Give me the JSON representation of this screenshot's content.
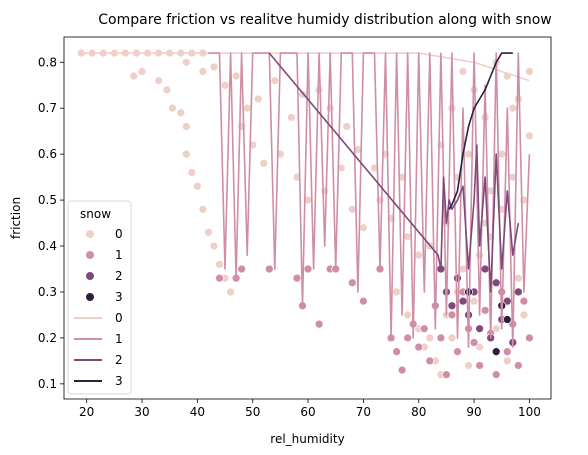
{
  "chart_data": {
    "type": "scatter",
    "title": "Compare friction vs realitve humidy distribution along with snow",
    "xlabel": "rel_humidity",
    "ylabel": "friction",
    "xlim": [
      15.9,
      103.9
    ],
    "ylim": [
      0.067,
      0.855
    ],
    "xticks": [
      20,
      30,
      40,
      50,
      60,
      70,
      80,
      90,
      100
    ],
    "yticks": [
      0.1,
      0.2,
      0.3,
      0.4,
      0.5,
      0.6,
      0.7,
      0.8
    ],
    "grid": false,
    "legend": {
      "title": "snow",
      "placement": "lower-left",
      "scatter_entries": [
        "0",
        "1",
        "2",
        "3"
      ],
      "line_entries": [
        "0",
        "1",
        "2",
        "3"
      ]
    },
    "series": [
      {
        "name": "0",
        "color": "#efd0c9",
        "points": [
          [
            19,
            0.82
          ],
          [
            21,
            0.82
          ],
          [
            23,
            0.82
          ],
          [
            25,
            0.82
          ],
          [
            27,
            0.82
          ],
          [
            29,
            0.82
          ],
          [
            31,
            0.82
          ],
          [
            33,
            0.82
          ],
          [
            35,
            0.82
          ],
          [
            37,
            0.82
          ],
          [
            39,
            0.82
          ],
          [
            41,
            0.82
          ],
          [
            28.5,
            0.77
          ],
          [
            30,
            0.78
          ],
          [
            33,
            0.76
          ],
          [
            34.5,
            0.74
          ],
          [
            35.5,
            0.7
          ],
          [
            37,
            0.69
          ],
          [
            38,
            0.66
          ],
          [
            38,
            0.6
          ],
          [
            39,
            0.56
          ],
          [
            40,
            0.53
          ],
          [
            41,
            0.48
          ],
          [
            42,
            0.43
          ],
          [
            43,
            0.4
          ],
          [
            44,
            0.36
          ],
          [
            45,
            0.33
          ],
          [
            46,
            0.3
          ],
          [
            38,
            0.8
          ],
          [
            41,
            0.78
          ],
          [
            43,
            0.79
          ],
          [
            45,
            0.75
          ],
          [
            47,
            0.77
          ],
          [
            49,
            0.7
          ],
          [
            51,
            0.72
          ],
          [
            54,
            0.76
          ],
          [
            57,
            0.68
          ],
          [
            59,
            0.73
          ],
          [
            62,
            0.74
          ],
          [
            64,
            0.7
          ],
          [
            67,
            0.66
          ],
          [
            69,
            0.61
          ],
          [
            72,
            0.57
          ],
          [
            74,
            0.6
          ],
          [
            77,
            0.55
          ],
          [
            48,
            0.66
          ],
          [
            50,
            0.62
          ],
          [
            52,
            0.58
          ],
          [
            55,
            0.6
          ],
          [
            58,
            0.55
          ],
          [
            60,
            0.5
          ],
          [
            63,
            0.52
          ],
          [
            66,
            0.57
          ],
          [
            68,
            0.48
          ],
          [
            70,
            0.44
          ],
          [
            73,
            0.5
          ],
          [
            75,
            0.46
          ],
          [
            78,
            0.42
          ],
          [
            80,
            0.38
          ],
          [
            82,
            0.4
          ],
          [
            76,
            0.3
          ],
          [
            78,
            0.25
          ],
          [
            80,
            0.22
          ],
          [
            81,
            0.18
          ],
          [
            82,
            0.2
          ],
          [
            83,
            0.15
          ],
          [
            84,
            0.12
          ],
          [
            85,
            0.25
          ],
          [
            86,
            0.2
          ],
          [
            87,
            0.3
          ],
          [
            88,
            0.35
          ],
          [
            89,
            0.14
          ],
          [
            90,
            0.28
          ],
          [
            91,
            0.18
          ],
          [
            92,
            0.45
          ],
          [
            93,
            0.52
          ],
          [
            94,
            0.22
          ],
          [
            95,
            0.6
          ],
          [
            96,
            0.15
          ],
          [
            97,
            0.7
          ],
          [
            98,
            0.33
          ],
          [
            99,
            0.25
          ],
          [
            100,
            0.78
          ],
          [
            84,
            0.62
          ],
          [
            86,
            0.7
          ],
          [
            88,
            0.78
          ],
          [
            90,
            0.74
          ],
          [
            92,
            0.68
          ],
          [
            94,
            0.8
          ],
          [
            96,
            0.77
          ],
          [
            98,
            0.72
          ],
          [
            100,
            0.64
          ],
          [
            85,
            0.45
          ],
          [
            87,
            0.55
          ],
          [
            89,
            0.6
          ],
          [
            91,
            0.38
          ],
          [
            93,
            0.42
          ],
          [
            95,
            0.48
          ],
          [
            97,
            0.55
          ],
          [
            99,
            0.5
          ]
        ],
        "line": [
          [
            19,
            0.82
          ],
          [
            42,
            0.82
          ],
          [
            50,
            0.82
          ],
          [
            60,
            0.82
          ],
          [
            70,
            0.82
          ],
          [
            75,
            0.82
          ],
          [
            80,
            0.82
          ],
          [
            85,
            0.81
          ],
          [
            90,
            0.8
          ],
          [
            95,
            0.78
          ],
          [
            100,
            0.76
          ]
        ]
      },
      {
        "name": "1",
        "color": "#d08ea6",
        "points": [
          [
            44,
            0.33
          ],
          [
            47,
            0.33
          ],
          [
            48,
            0.35
          ],
          [
            53,
            0.35
          ],
          [
            58,
            0.33
          ],
          [
            59,
            0.27
          ],
          [
            60,
            0.35
          ],
          [
            62,
            0.23
          ],
          [
            64,
            0.35
          ],
          [
            65,
            0.35
          ],
          [
            68,
            0.32
          ],
          [
            70,
            0.28
          ],
          [
            73,
            0.35
          ],
          [
            75,
            0.2
          ],
          [
            76,
            0.17
          ],
          [
            77,
            0.13
          ],
          [
            78,
            0.2
          ],
          [
            79,
            0.23
          ],
          [
            80,
            0.18
          ],
          [
            81,
            0.22
          ],
          [
            82,
            0.15
          ],
          [
            83,
            0.27
          ],
          [
            84,
            0.2
          ],
          [
            85,
            0.12
          ],
          [
            86,
            0.25
          ],
          [
            87,
            0.17
          ],
          [
            88,
            0.3
          ],
          [
            89,
            0.22
          ],
          [
            90,
            0.19
          ],
          [
            91,
            0.14
          ],
          [
            92,
            0.26
          ],
          [
            93,
            0.21
          ],
          [
            94,
            0.12
          ],
          [
            95,
            0.3
          ],
          [
            96,
            0.17
          ],
          [
            97,
            0.23
          ],
          [
            98,
            0.14
          ],
          [
            99,
            0.28
          ],
          [
            100,
            0.2
          ]
        ],
        "line": [
          [
            42,
            0.82
          ],
          [
            44,
            0.82
          ],
          [
            45,
            0.35
          ],
          [
            46,
            0.82
          ],
          [
            47,
            0.33
          ],
          [
            48,
            0.82
          ],
          [
            49,
            0.38
          ],
          [
            50,
            0.82
          ],
          [
            53,
            0.82
          ],
          [
            54,
            0.35
          ],
          [
            55,
            0.82
          ],
          [
            58,
            0.82
          ],
          [
            59,
            0.27
          ],
          [
            60,
            0.82
          ],
          [
            61,
            0.35
          ],
          [
            62,
            0.82
          ],
          [
            63,
            0.4
          ],
          [
            64,
            0.82
          ],
          [
            65,
            0.35
          ],
          [
            66,
            0.82
          ],
          [
            68,
            0.82
          ],
          [
            69,
            0.3
          ],
          [
            70,
            0.82
          ],
          [
            72,
            0.82
          ],
          [
            73,
            0.35
          ],
          [
            74,
            0.82
          ],
          [
            75,
            0.2
          ],
          [
            76,
            0.82
          ],
          [
            77,
            0.25
          ],
          [
            78,
            0.82
          ],
          [
            79,
            0.2
          ],
          [
            80,
            0.82
          ],
          [
            81,
            0.3
          ],
          [
            82,
            0.82
          ],
          [
            83,
            0.22
          ],
          [
            84,
            0.82
          ],
          [
            85,
            0.25
          ],
          [
            86,
            0.82
          ],
          [
            87,
            0.2
          ],
          [
            88,
            0.7
          ],
          [
            89,
            0.18
          ],
          [
            90,
            0.82
          ],
          [
            91,
            0.25
          ],
          [
            92,
            0.75
          ],
          [
            93,
            0.2
          ],
          [
            94,
            0.82
          ],
          [
            95,
            0.22
          ],
          [
            96,
            0.7
          ],
          [
            97,
            0.18
          ],
          [
            98,
            0.82
          ],
          [
            99,
            0.3
          ],
          [
            100,
            0.6
          ]
        ]
      },
      {
        "name": "2",
        "color": "#7d4a7b",
        "points": [
          [
            84,
            0.35
          ],
          [
            85,
            0.3
          ],
          [
            86,
            0.27
          ],
          [
            87,
            0.33
          ],
          [
            88,
            0.28
          ],
          [
            89,
            0.25
          ],
          [
            90,
            0.3
          ],
          [
            91,
            0.22
          ],
          [
            92,
            0.35
          ],
          [
            93,
            0.2
          ],
          [
            94,
            0.32
          ],
          [
            95,
            0.24
          ],
          [
            96,
            0.28
          ],
          [
            97,
            0.19
          ],
          [
            98,
            0.3
          ]
        ],
        "line": [
          [
            53,
            0.82
          ],
          [
            83.5,
            0.38
          ],
          [
            84,
            0.35
          ],
          [
            84.5,
            0.55
          ],
          [
            85,
            0.45
          ],
          [
            85.5,
            0.5
          ],
          [
            86,
            0.48
          ],
          [
            87,
            0.5
          ],
          [
            88,
            0.53
          ],
          [
            89,
            0.35
          ],
          [
            90,
            0.5
          ],
          [
            90.5,
            0.62
          ],
          [
            91,
            0.4
          ],
          [
            92,
            0.55
          ],
          [
            93,
            0.3
          ],
          [
            94,
            0.6
          ],
          [
            95,
            0.35
          ],
          [
            96,
            0.52
          ],
          [
            97,
            0.38
          ],
          [
            98,
            0.45
          ]
        ]
      },
      {
        "name": "3",
        "color": "#2d1e3e",
        "points": [
          [
            89,
            0.3
          ],
          [
            94,
            0.17
          ],
          [
            95,
            0.27
          ],
          [
            96,
            0.24
          ]
        ],
        "line": [
          [
            85.5,
            0.48
          ],
          [
            86,
            0.49
          ],
          [
            87,
            0.52
          ],
          [
            88,
            0.6
          ],
          [
            89,
            0.66
          ],
          [
            90,
            0.7
          ],
          [
            91,
            0.72
          ],
          [
            92,
            0.74
          ],
          [
            93,
            0.77
          ],
          [
            94,
            0.8
          ],
          [
            95,
            0.82
          ],
          [
            96,
            0.82
          ],
          [
            97,
            0.82
          ]
        ]
      }
    ]
  }
}
